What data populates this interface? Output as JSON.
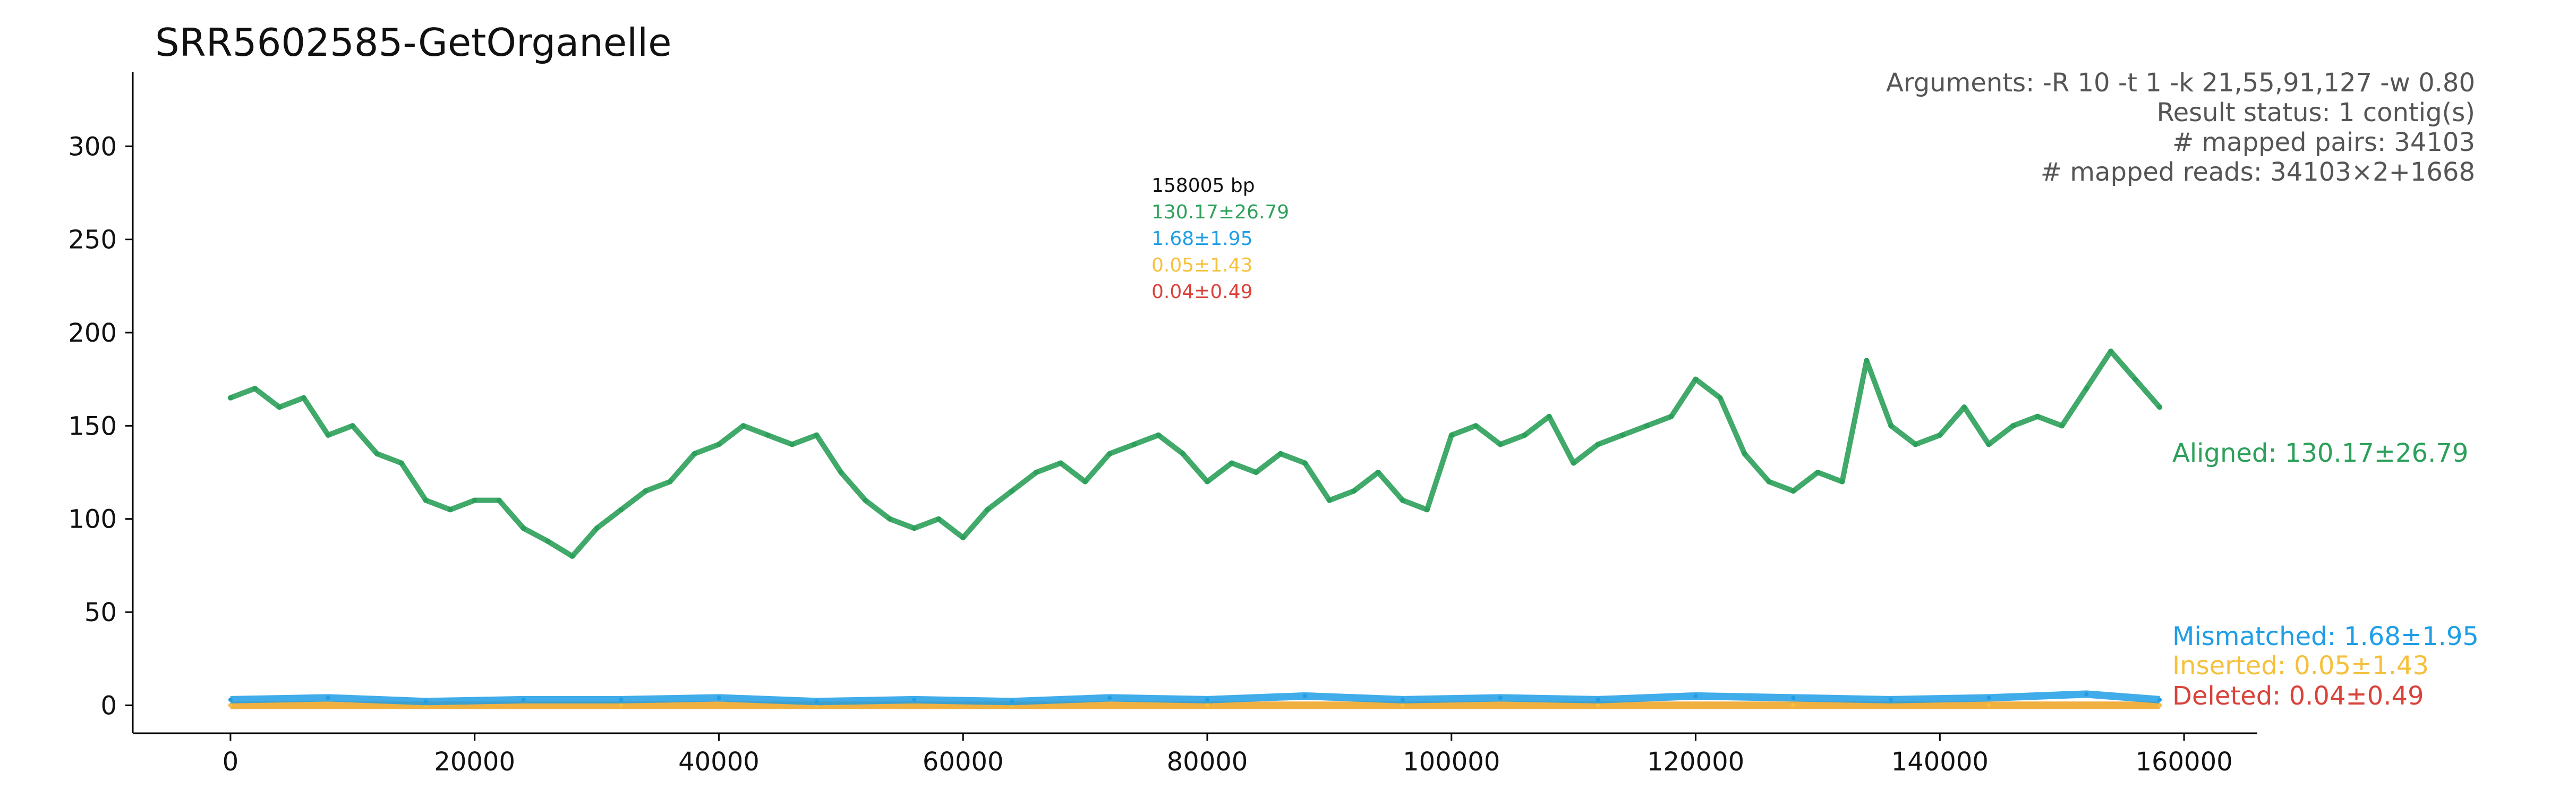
{
  "chart_data": {
    "type": "scatter",
    "title": "SRR5602585-GetOrganelle",
    "xlabel": "",
    "ylabel": "",
    "xlim": [
      -8000,
      166000
    ],
    "ylim": [
      -15,
      340
    ],
    "xticks": [
      0,
      20000,
      40000,
      60000,
      80000,
      100000,
      120000,
      140000,
      160000
    ],
    "yticks": [
      0,
      50,
      100,
      150,
      200,
      250,
      300
    ],
    "grid": false,
    "arguments": [
      "Arguments: -R 10 -t 1 -k 21,55,91,127 -w 0.80",
      "Result status: 1 contig(s)",
      "# mapped pairs: 34103",
      "# mapped reads: 34103×2+1668"
    ],
    "summary": {
      "length": "158005 bp",
      "aligned": "130.17±26.79",
      "mismatched": "1.68±1.95",
      "inserted": "0.05±1.43",
      "deleted": "0.04±0.49"
    },
    "series": [
      {
        "name": "Aligned",
        "label": "Aligned: 130.17±26.79",
        "color": "#2ca05a",
        "x": [
          0,
          2000,
          4000,
          6000,
          8000,
          10000,
          12000,
          14000,
          16000,
          18000,
          20000,
          22000,
          24000,
          26000,
          28000,
          30000,
          32000,
          34000,
          36000,
          38000,
          40000,
          42000,
          44000,
          46000,
          48000,
          50000,
          52000,
          54000,
          56000,
          58000,
          60000,
          62000,
          64000,
          66000,
          68000,
          70000,
          72000,
          74000,
          76000,
          78000,
          80000,
          82000,
          84000,
          86000,
          88000,
          90000,
          92000,
          94000,
          96000,
          98000,
          100000,
          102000,
          104000,
          106000,
          108000,
          110000,
          112000,
          114000,
          116000,
          118000,
          120000,
          122000,
          124000,
          126000,
          128000,
          130000,
          132000,
          134000,
          136000,
          138000,
          140000,
          142000,
          144000,
          146000,
          148000,
          150000,
          152000,
          154000,
          156000,
          158000
        ],
        "y": [
          165,
          170,
          160,
          165,
          145,
          150,
          135,
          130,
          110,
          105,
          110,
          110,
          95,
          88,
          80,
          95,
          105,
          115,
          120,
          135,
          140,
          150,
          145,
          140,
          145,
          125,
          110,
          100,
          95,
          100,
          90,
          105,
          115,
          125,
          130,
          120,
          135,
          140,
          145,
          135,
          120,
          130,
          125,
          135,
          130,
          110,
          115,
          125,
          110,
          105,
          145,
          150,
          140,
          145,
          155,
          130,
          140,
          145,
          150,
          155,
          175,
          165,
          135,
          120,
          115,
          125,
          120,
          185,
          150,
          140,
          145,
          160,
          140,
          150,
          155,
          150,
          170,
          190,
          175,
          160
        ]
      },
      {
        "name": "Mismatched",
        "label": "Mismatched: 1.68±1.95",
        "color": "#1f9ee6",
        "x": [
          0,
          8000,
          16000,
          24000,
          32000,
          40000,
          48000,
          56000,
          64000,
          72000,
          80000,
          88000,
          96000,
          104000,
          112000,
          120000,
          128000,
          136000,
          144000,
          152000,
          158000
        ],
        "y": [
          3,
          4,
          2,
          3,
          3,
          4,
          2,
          3,
          2,
          4,
          3,
          5,
          3,
          4,
          3,
          5,
          4,
          3,
          4,
          6,
          3
        ]
      },
      {
        "name": "Inserted",
        "label": "Inserted: 0.05±1.43",
        "color": "#f5c03c",
        "x": [
          0,
          16000,
          32000,
          48000,
          64000,
          80000,
          96000,
          112000,
          128000,
          144000,
          158000
        ],
        "y": [
          0,
          0,
          0,
          0,
          0,
          0,
          0,
          0,
          0,
          0,
          0
        ]
      },
      {
        "name": "Deleted",
        "label": "Deleted: 0.04±0.49",
        "color": "#d9433a",
        "x": [
          0,
          16000,
          32000,
          48000,
          64000,
          80000,
          96000,
          112000,
          128000,
          144000,
          158000
        ],
        "y": [
          0,
          0,
          0,
          0,
          0,
          0,
          0,
          0,
          0,
          0,
          0
        ]
      }
    ]
  }
}
